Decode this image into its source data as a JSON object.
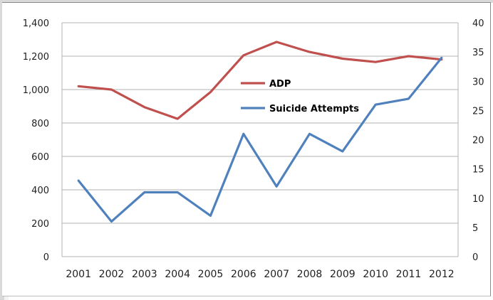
{
  "chart_data": {
    "type": "line",
    "title": "",
    "xlabel": "",
    "ylabel": "",
    "categories": [
      "2001",
      "2002",
      "2003",
      "2004",
      "2005",
      "2006",
      "2007",
      "2008",
      "2009",
      "2010",
      "2011",
      "2012"
    ],
    "y_left": {
      "min": 0,
      "max": 1400,
      "step": 200,
      "tick_labels": [
        "0",
        "200",
        "400",
        "600",
        "800",
        "1,000",
        "1,200",
        "1,400"
      ]
    },
    "y_right": {
      "min": 0,
      "max": 40,
      "step": 5,
      "tick_labels": [
        "0",
        "5",
        "10",
        "15",
        "20",
        "25",
        "30",
        "35",
        "40"
      ]
    },
    "grid": "horizontal",
    "series": [
      {
        "name": "ADP",
        "axis": "left",
        "color": "#c0504d",
        "values": [
          1020,
          1000,
          895,
          825,
          985,
          1205,
          1285,
          1225,
          1185,
          1165,
          1200,
          1180
        ]
      },
      {
        "name": "Suicide Attempts",
        "axis": "right",
        "color": "#4f81bd",
        "values": [
          13,
          6,
          11,
          11,
          7,
          21,
          12,
          21,
          18,
          26,
          27,
          34
        ]
      }
    ],
    "legend_position": "center-right"
  }
}
